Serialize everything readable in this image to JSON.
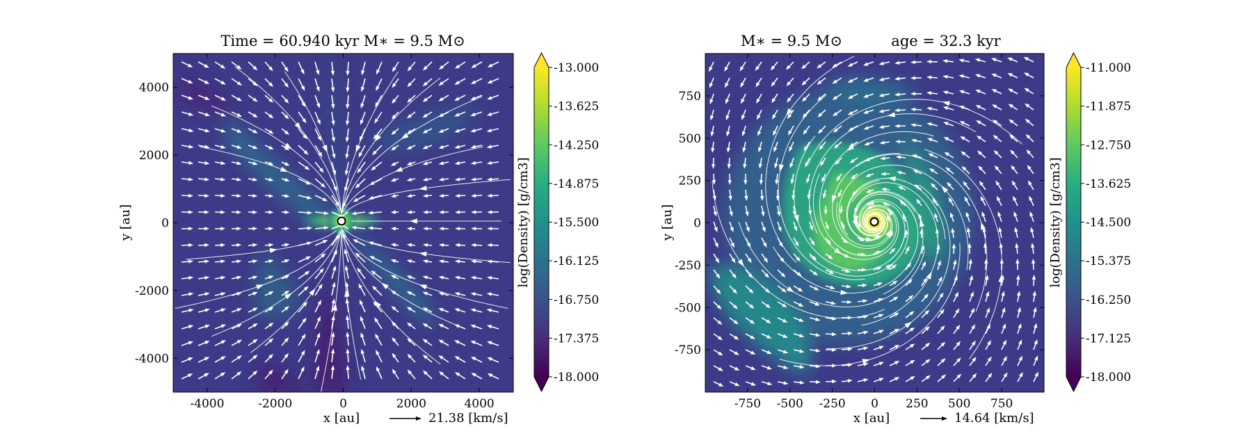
{
  "chart_data": [
    {
      "type": "heatmap",
      "title": "Time = 60.940  kyr    M$_*$ = 9.5 M$_\\odot$",
      "title_display": "Time = 60.940  kyr    M∗ = 9.5 M⊙",
      "xlabel": "x [au]",
      "ylabel": "y [au]",
      "xlim": [
        -5000,
        5000
      ],
      "ylim": [
        -5000,
        5000
      ],
      "xticks": [
        -4000,
        -2000,
        0,
        2000,
        4000
      ],
      "yticks": [
        -4000,
        -2000,
        0,
        2000,
        4000
      ],
      "xtick_labels": [
        "-4000",
        "-2000",
        "0",
        "2000",
        "4000"
      ],
      "ytick_labels": [
        "-4000",
        "-2000",
        "0",
        "2000",
        "4000"
      ],
      "colorbar": {
        "label": "log(Density) [g/cm3]",
        "range": [
          -18.0,
          -13.0
        ],
        "ticks": [
          "-13.000",
          "-13.625",
          "-14.250",
          "-14.875",
          "-15.500",
          "-16.125",
          "-16.750",
          "-17.375",
          "-18.000"
        ],
        "colormap": "viridis"
      },
      "velocity_key": "21.38 [km/s]",
      "overlays": [
        "streamlines",
        "velocity-vectors",
        "sink-particle"
      ]
    },
    {
      "type": "heatmap",
      "title_left": "M∗ = 9.5 M⊙",
      "title_right": "age = 32.3 kyr",
      "xlabel": "x [au]",
      "ylabel": "y [au]",
      "xlim": [
        -1000,
        1000
      ],
      "ylim": [
        -1000,
        1000
      ],
      "xticks": [
        -750,
        -500,
        -250,
        0,
        250,
        500,
        750
      ],
      "yticks": [
        -750,
        -500,
        -250,
        0,
        250,
        500,
        750
      ],
      "xtick_labels": [
        "-750",
        "-500",
        "-250",
        "0",
        "250",
        "500",
        "750"
      ],
      "ytick_labels": [
        "-750",
        "-500",
        "-250",
        "0",
        "250",
        "500",
        "750"
      ],
      "colorbar": {
        "label": "log(Density) [g/cm3]",
        "range": [
          -18.0,
          -11.0
        ],
        "ticks": [
          "-11.000",
          "-11.875",
          "-12.750",
          "-13.625",
          "-14.500",
          "-15.375",
          "-16.250",
          "-17.125",
          "-18.000"
        ],
        "colormap": "viridis"
      },
      "velocity_key": "14.64 [km/s]",
      "overlays": [
        "streamlines",
        "velocity-vectors",
        "sink-particle"
      ]
    }
  ],
  "colors": {
    "viridis": [
      "#440154",
      "#472d7b",
      "#3b528b",
      "#2c728e",
      "#21918c",
      "#28ae80",
      "#5ec962",
      "#addc30",
      "#fde725"
    ],
    "background": "#3d3a87",
    "overlay": "#ffffff"
  }
}
